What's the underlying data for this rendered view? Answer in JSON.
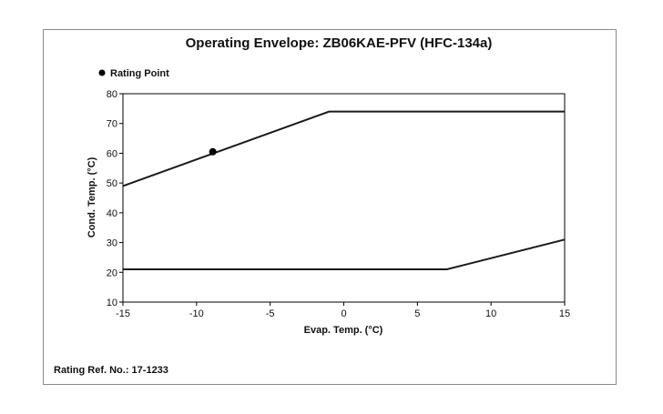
{
  "chart_data": {
    "type": "line",
    "title": "Operating Envelope: ZB06KAE-PFV (HFC-134a)",
    "xlabel": "Evap. Temp. (°C)",
    "ylabel": "Cond. Temp. (°C)",
    "xlim": [
      -15,
      15
    ],
    "ylim": [
      10,
      80
    ],
    "xticks": [
      -15,
      -10,
      -5,
      0,
      5,
      10,
      15
    ],
    "yticks": [
      10,
      20,
      30,
      40,
      50,
      60,
      70,
      80
    ],
    "grid": false,
    "legend_position": "top-left",
    "series": [
      {
        "x": [
          -15,
          -1,
          15
        ],
        "y": [
          49,
          74,
          74
        ]
      },
      {
        "x": [
          -15,
          7,
          15
        ],
        "y": [
          21,
          21,
          31
        ]
      }
    ],
    "rating_point": {
      "name": "Rating Point",
      "x": -8.9,
      "y": 60.5
    }
  },
  "footer": {
    "rating_ref": "Rating Ref. No.: 17-1233"
  },
  "colors": {
    "line": "#1a1a1a",
    "frame": "#8c8c8c",
    "axis": "#000000"
  }
}
